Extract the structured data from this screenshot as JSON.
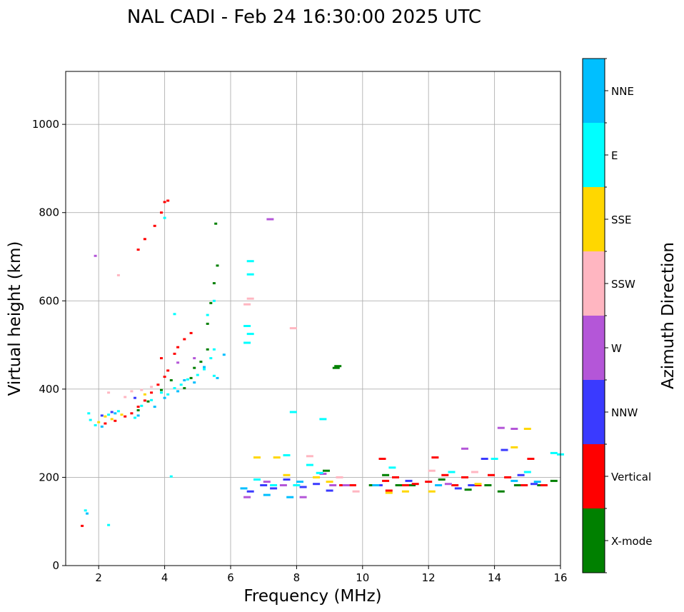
{
  "chart_data": {
    "type": "scatter",
    "title": "NAL CADI - Feb 24 16:30:00 2025 UTC",
    "xlabel": "Frequency (MHz)",
    "ylabel": "Virtual height (km)",
    "xlim": [
      1,
      16
    ],
    "ylim": [
      0,
      1120
    ],
    "xticks": [
      2,
      4,
      6,
      8,
      10,
      12,
      14,
      16
    ],
    "yticks": [
      0,
      200,
      400,
      600,
      800,
      1000
    ],
    "grid": true,
    "colorbar": {
      "label": "Azimuth Direction",
      "categories": [
        {
          "name": "X-mode",
          "color": "#008000"
        },
        {
          "name": "Vertical",
          "color": "#ff0000"
        },
        {
          "name": "NNW",
          "color": "#3a3aff"
        },
        {
          "name": "W",
          "color": "#b456d8"
        },
        {
          "name": "SSW",
          "color": "#ffb6c1"
        },
        {
          "name": "SSE",
          "color": "#ffd700"
        },
        {
          "name": "E",
          "color": "#00ffff"
        },
        {
          "name": "NNE",
          "color": "#00bfff"
        }
      ]
    },
    "series": [
      {
        "name": "X-mode",
        "points": [
          [
            3.2,
            352
          ],
          [
            3.5,
            372
          ],
          [
            3.9,
            398
          ],
          [
            4.2,
            420
          ],
          [
            4.6,
            402
          ],
          [
            4.9,
            448
          ],
          [
            5.1,
            462
          ],
          [
            5.3,
            548
          ],
          [
            5.4,
            595
          ],
          [
            5.5,
            640
          ],
          [
            5.6,
            680
          ],
          [
            5.55,
            775
          ],
          [
            5.3,
            490
          ],
          [
            4.8,
            425
          ],
          [
            9.2,
            448
          ],
          [
            9.25,
            452
          ],
          [
            8.9,
            215
          ],
          [
            10.3,
            182
          ],
          [
            10.7,
            205
          ],
          [
            11.1,
            182
          ],
          [
            12.4,
            195
          ],
          [
            13.2,
            172
          ],
          [
            13.8,
            182
          ],
          [
            14.2,
            168
          ],
          [
            14.7,
            182
          ],
          [
            15.4,
            182
          ],
          [
            15.8,
            192
          ],
          [
            11.5,
            182
          ]
        ]
      },
      {
        "name": "Vertical",
        "points": [
          [
            2.2,
            322
          ],
          [
            2.5,
            328
          ],
          [
            2.8,
            338
          ],
          [
            3.0,
            345
          ],
          [
            3.2,
            360
          ],
          [
            3.4,
            374
          ],
          [
            3.6,
            392
          ],
          [
            3.8,
            410
          ],
          [
            4.0,
            428
          ],
          [
            4.1,
            442
          ],
          [
            3.9,
            470
          ],
          [
            4.3,
            480
          ],
          [
            4.4,
            495
          ],
          [
            4.6,
            513
          ],
          [
            4.8,
            527
          ],
          [
            4.1,
            827
          ],
          [
            4.0,
            824
          ],
          [
            3.9,
            800
          ],
          [
            3.7,
            770
          ],
          [
            3.4,
            740
          ],
          [
            3.2,
            716
          ],
          [
            1.5,
            90
          ],
          [
            9.4,
            182
          ],
          [
            9.7,
            182
          ],
          [
            10.6,
            242
          ],
          [
            10.7,
            192
          ],
          [
            11.0,
            200
          ],
          [
            11.3,
            182
          ],
          [
            11.6,
            185
          ],
          [
            12.2,
            245
          ],
          [
            12.5,
            205
          ],
          [
            12.8,
            182
          ],
          [
            13.1,
            200
          ],
          [
            13.5,
            182
          ],
          [
            13.9,
            205
          ],
          [
            14.4,
            200
          ],
          [
            14.9,
            182
          ],
          [
            15.1,
            242
          ],
          [
            15.5,
            182
          ],
          [
            10.8,
            170
          ],
          [
            12.0,
            190
          ]
        ]
      },
      {
        "name": "NNW",
        "points": [
          [
            2.1,
            340
          ],
          [
            2.4,
            348
          ],
          [
            3.1,
            380
          ],
          [
            6.6,
            168
          ],
          [
            7.0,
            182
          ],
          [
            7.3,
            175
          ],
          [
            7.7,
            195
          ],
          [
            8.2,
            178
          ],
          [
            8.6,
            185
          ],
          [
            9.0,
            170
          ],
          [
            10.5,
            182
          ],
          [
            11.4,
            192
          ],
          [
            12.9,
            175
          ],
          [
            13.3,
            182
          ],
          [
            14.3,
            262
          ],
          [
            14.8,
            205
          ],
          [
            15.2,
            185
          ],
          [
            13.7,
            242
          ]
        ]
      },
      {
        "name": "W",
        "points": [
          [
            1.9,
            702
          ],
          [
            4.4,
            460
          ],
          [
            4.9,
            470
          ],
          [
            6.5,
            155
          ],
          [
            7.1,
            190
          ],
          [
            7.6,
            182
          ],
          [
            8.2,
            155
          ],
          [
            8.8,
            208
          ],
          [
            9.1,
            182
          ],
          [
            9.5,
            182
          ],
          [
            13.1,
            265
          ],
          [
            14.2,
            312
          ],
          [
            14.6,
            310
          ],
          [
            12.6,
            185
          ],
          [
            7.2,
            785
          ]
        ]
      },
      {
        "name": "SSW",
        "points": [
          [
            2.3,
            392
          ],
          [
            2.6,
            658
          ],
          [
            2.8,
            382
          ],
          [
            3.0,
            395
          ],
          [
            3.3,
            398
          ],
          [
            3.6,
            405
          ],
          [
            6.6,
            605
          ],
          [
            6.5,
            592
          ],
          [
            7.9,
            538
          ],
          [
            8.4,
            248
          ],
          [
            9.3,
            200
          ],
          [
            9.8,
            168
          ],
          [
            12.1,
            215
          ],
          [
            13.4,
            212
          ]
        ]
      },
      {
        "name": "SSE",
        "points": [
          [
            2.0,
            325
          ],
          [
            2.2,
            338
          ],
          [
            2.4,
            332
          ],
          [
            2.7,
            342
          ],
          [
            3.4,
            388
          ],
          [
            6.8,
            245
          ],
          [
            7.4,
            245
          ],
          [
            7.7,
            205
          ],
          [
            8.6,
            200
          ],
          [
            9.0,
            190
          ],
          [
            10.8,
            165
          ],
          [
            11.3,
            168
          ],
          [
            12.1,
            168
          ],
          [
            14.6,
            268
          ],
          [
            15.0,
            310
          ],
          [
            13.5,
            185
          ]
        ]
      },
      {
        "name": "E",
        "points": [
          [
            1.7,
            345
          ],
          [
            1.75,
            330
          ],
          [
            1.9,
            318
          ],
          [
            2.3,
            342
          ],
          [
            2.6,
            350
          ],
          [
            3.1,
            335
          ],
          [
            3.3,
            362
          ],
          [
            3.6,
            375
          ],
          [
            3.9,
            392
          ],
          [
            4.1,
            388
          ],
          [
            4.3,
            402
          ],
          [
            4.5,
            410
          ],
          [
            4.7,
            422
          ],
          [
            5.0,
            432
          ],
          [
            5.2,
            445
          ],
          [
            5.4,
            470
          ],
          [
            5.5,
            430
          ],
          [
            5.3,
            568
          ],
          [
            5.5,
            600
          ],
          [
            6.5,
            543
          ],
          [
            6.6,
            525
          ],
          [
            6.5,
            505
          ],
          [
            6.6,
            660
          ],
          [
            6.6,
            690
          ],
          [
            7.9,
            348
          ],
          [
            8.8,
            332
          ],
          [
            4.2,
            202
          ],
          [
            4.0,
            788
          ],
          [
            4.3,
            570
          ],
          [
            5.5,
            490
          ],
          [
            1.6,
            125
          ],
          [
            2.3,
            92
          ],
          [
            6.8,
            195
          ],
          [
            7.3,
            182
          ],
          [
            7.7,
            250
          ],
          [
            8.0,
            182
          ],
          [
            8.4,
            228
          ],
          [
            8.7,
            210
          ],
          [
            10.9,
            222
          ],
          [
            12.7,
            212
          ],
          [
            14.0,
            242
          ],
          [
            15.0,
            212
          ],
          [
            15.8,
            255
          ],
          [
            16.0,
            252
          ]
        ]
      },
      {
        "name": "NNE",
        "points": [
          [
            2.1,
            315
          ],
          [
            2.5,
            345
          ],
          [
            3.2,
            340
          ],
          [
            3.7,
            360
          ],
          [
            4.0,
            380
          ],
          [
            4.4,
            395
          ],
          [
            4.6,
            420
          ],
          [
            4.9,
            415
          ],
          [
            5.2,
            450
          ],
          [
            5.6,
            425
          ],
          [
            5.8,
            478
          ],
          [
            1.65,
            118
          ],
          [
            6.4,
            175
          ],
          [
            7.1,
            160
          ],
          [
            7.8,
            155
          ],
          [
            8.1,
            190
          ],
          [
            10.4,
            182
          ],
          [
            12.3,
            182
          ],
          [
            14.6,
            192
          ],
          [
            15.3,
            190
          ]
        ]
      }
    ]
  }
}
